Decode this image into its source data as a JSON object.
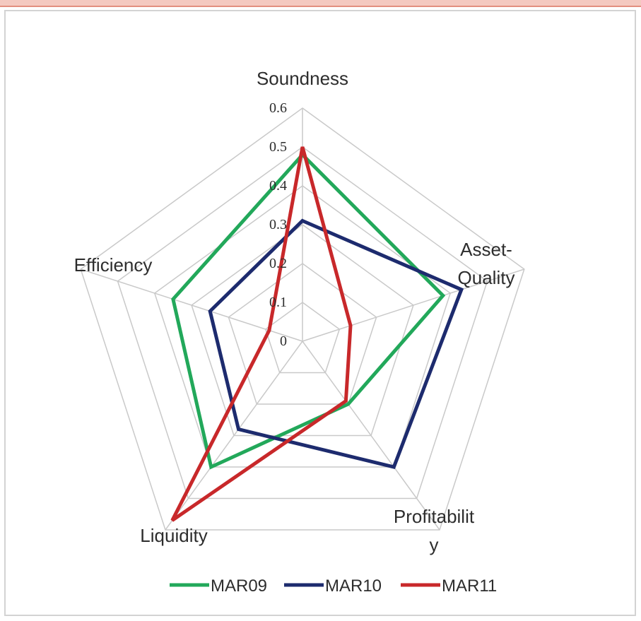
{
  "chart_data": {
    "type": "radar",
    "title": "",
    "axes": [
      "Soundness",
      "Asset-Quality",
      "Profitability",
      "Liquidity",
      "Efficiency"
    ],
    "axis_labels": [
      [
        "Soundness"
      ],
      [
        "Asset-",
        "Quality"
      ],
      [
        "Profitabilit",
        "y"
      ],
      [
        "Liquidity"
      ],
      [
        "Efficiency"
      ]
    ],
    "radial_range": [
      0,
      0.6
    ],
    "radial_ticks": [
      "0",
      "0.1",
      "0.2",
      "0.3",
      "0.4",
      "0.5",
      "0.6"
    ],
    "grid": true,
    "legend_position": "bottom",
    "series": [
      {
        "name": "MAR09",
        "color": "#22a85a",
        "values": [
          0.48,
          0.38,
          0.2,
          0.4,
          0.35
        ]
      },
      {
        "name": "MAR10",
        "color": "#1d2b6e",
        "values": [
          0.31,
          0.43,
          0.4,
          0.28,
          0.25
        ]
      },
      {
        "name": "MAR11",
        "color": "#c8282a",
        "values": [
          0.5,
          0.13,
          0.19,
          0.57,
          0.09
        ]
      }
    ]
  }
}
